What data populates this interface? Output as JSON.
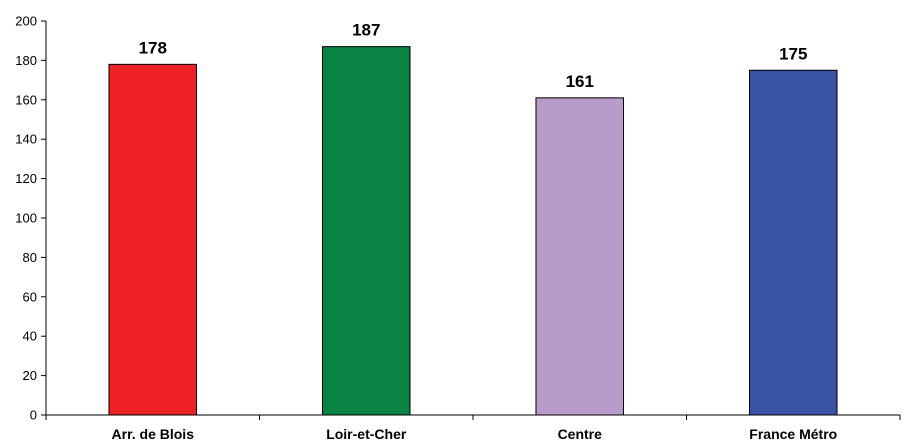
{
  "chart_data": {
    "type": "bar",
    "categories": [
      "Arr. de Blois",
      "Loir-et-Cher",
      "Centre",
      "France Métro"
    ],
    "values": [
      178,
      187,
      161,
      175
    ],
    "data_labels": [
      "178",
      "187",
      "161",
      "175"
    ],
    "colors": [
      "#ee2124",
      "#0a8243",
      "#b89bc9",
      "#3a53a4"
    ],
    "title": "",
    "xlabel": "",
    "ylabel": "",
    "ylim": [
      0,
      200
    ],
    "yticks": [
      0,
      20,
      40,
      60,
      80,
      100,
      120,
      140,
      160,
      180,
      200
    ],
    "ytick_labels": [
      "0",
      "20",
      "40",
      "60",
      "80",
      "100",
      "120",
      "140",
      "160",
      "180",
      "200"
    ],
    "grid": false,
    "legend": "none"
  }
}
